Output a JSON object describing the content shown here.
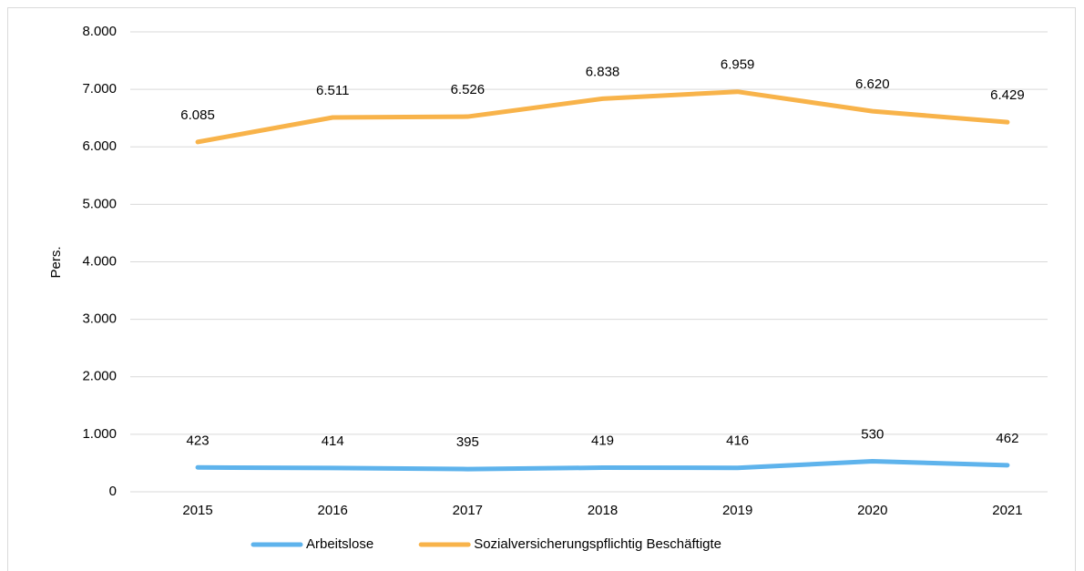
{
  "chart_data": {
    "type": "line",
    "y_label": "Pers.",
    "categories": [
      "2015",
      "2016",
      "2017",
      "2018",
      "2019",
      "2020",
      "2021"
    ],
    "series": [
      {
        "name": "Arbeitslose",
        "color": "#5eb3ec",
        "values": [
          423,
          414,
          395,
          419,
          416,
          530,
          462
        ]
      },
      {
        "name": "Sozialversicherungspflichtig Beschäftigte",
        "color": "#f8b34a",
        "values": [
          6085,
          6511,
          6526,
          6838,
          6959,
          6620,
          6429
        ],
        "value_labels": [
          "6.085",
          "6.511",
          "6.526",
          "6.838",
          "6.959",
          "6.620",
          "6.429"
        ]
      }
    ],
    "ylim": [
      0,
      8000
    ],
    "yticks": [
      0,
      {
        "value": 1000,
        "label": "1.000"
      },
      {
        "value": 2000,
        "label": "2.000"
      },
      {
        "value": 3000,
        "label": "3.000"
      },
      {
        "value": 4000,
        "label": "4.000"
      },
      {
        "value": 5000,
        "label": "5.000"
      },
      {
        "value": 6000,
        "label": "6.000"
      },
      {
        "value": 7000,
        "label": "7.000"
      },
      {
        "value": 8000,
        "label": "8.000"
      }
    ],
    "grid": true,
    "legend": "bottom"
  }
}
